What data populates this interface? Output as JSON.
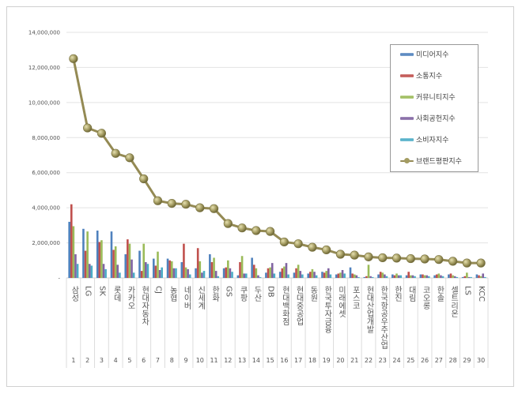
{
  "chart_data": {
    "type": "bar",
    "title": "",
    "xlabel": "",
    "ylabel": "",
    "ylim": [
      0,
      14000000
    ],
    "yticks": [
      0,
      2000000,
      4000000,
      6000000,
      8000000,
      10000000,
      12000000,
      14000000
    ],
    "ytick_labels": [
      "-",
      "2,000,000",
      "4,000,000",
      "6,000,000",
      "8,000,000",
      "10,000,000",
      "12,000,000",
      "14,000,000"
    ],
    "grid": true,
    "legend_position": "top-right",
    "categories": [
      "삼성",
      "LG",
      "SK",
      "롯데",
      "카카오",
      "현대자동차",
      "CJ",
      "농협",
      "네이버",
      "신세계",
      "한화",
      "GS",
      "쿠팡",
      "두산",
      "DB",
      "현대백화점",
      "현대중공업",
      "동원",
      "한국투자금융",
      "미래에셋",
      "포스코",
      "현대산업개발",
      "한국항공우주산업",
      "한진",
      "대림",
      "코오롱",
      "한솔",
      "셀트리온",
      "LS",
      "KCC"
    ],
    "ranks": [
      "1",
      "2",
      "3",
      "4",
      "5",
      "6",
      "7",
      "8",
      "9",
      "10",
      "11",
      "12",
      "13",
      "14",
      "15",
      "16",
      "17",
      "18",
      "19",
      "20",
      "21",
      "22",
      "23",
      "24",
      "25",
      "26",
      "27",
      "28",
      "29",
      "30"
    ],
    "series": [
      {
        "name": "미디어지수",
        "type": "bar",
        "color": "#4F81BD",
        "values": [
          3200000,
          2800000,
          2700000,
          2650000,
          1350000,
          1550000,
          1100000,
          1100000,
          900000,
          550000,
          1350000,
          550000,
          150000,
          1150000,
          300000,
          350000,
          300000,
          250000,
          350000,
          200000,
          600000,
          50000,
          200000,
          200000,
          150000,
          200000,
          150000,
          200000,
          50000,
          200000
        ]
      },
      {
        "name": "소통지수",
        "type": "bar",
        "color": "#C0504D",
        "values": [
          4200000,
          1550000,
          2050000,
          1600000,
          2200000,
          400000,
          700000,
          1000000,
          1950000,
          1700000,
          900000,
          600000,
          900000,
          750000,
          550000,
          550000,
          550000,
          350000,
          300000,
          250000,
          250000,
          100000,
          350000,
          150000,
          350000,
          200000,
          200000,
          250000,
          100000,
          150000
        ]
      },
      {
        "name": "커뮤니티지수",
        "type": "bar",
        "color": "#9BBB59",
        "values": [
          2950000,
          2650000,
          2150000,
          1800000,
          1950000,
          1950000,
          1500000,
          950000,
          600000,
          950000,
          1150000,
          1000000,
          1250000,
          550000,
          600000,
          650000,
          750000,
          500000,
          400000,
          300000,
          200000,
          750000,
          300000,
          250000,
          150000,
          150000,
          250000,
          150000,
          300000,
          100000
        ]
      },
      {
        "name": "사회공헌지수",
        "type": "bar",
        "color": "#8064A2",
        "values": [
          1350000,
          800000,
          800000,
          750000,
          1050000,
          900000,
          450000,
          550000,
          500000,
          300000,
          400000,
          550000,
          250000,
          150000,
          850000,
          850000,
          400000,
          350000,
          550000,
          450000,
          150000,
          100000,
          200000,
          150000,
          150000,
          150000,
          150000,
          100000,
          50000,
          250000
        ]
      },
      {
        "name": "소비자지수",
        "type": "bar",
        "color": "#4BACC6",
        "values": [
          800000,
          700000,
          500000,
          300000,
          300000,
          800000,
          600000,
          550000,
          200000,
          400000,
          100000,
          350000,
          250000,
          50000,
          250000,
          200000,
          200000,
          150000,
          200000,
          250000,
          50000,
          50000,
          100000,
          150000,
          100000,
          100000,
          100000,
          50000,
          50000,
          50000
        ]
      },
      {
        "name": "브랜드평판지수",
        "type": "line",
        "color": "#948A54",
        "values": [
          12500000,
          8550000,
          8250000,
          7100000,
          6850000,
          5650000,
          4400000,
          4250000,
          4200000,
          4000000,
          3950000,
          3100000,
          2850000,
          2700000,
          2650000,
          2050000,
          1950000,
          1750000,
          1600000,
          1350000,
          1300000,
          1200000,
          1150000,
          1130000,
          1100000,
          1080000,
          1050000,
          950000,
          850000,
          850000
        ]
      }
    ]
  }
}
